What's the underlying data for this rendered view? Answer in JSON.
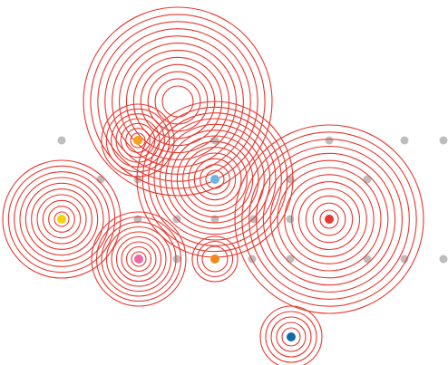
{
  "colors": {
    "background": "#ffffff",
    "ring_stroke": "#e8372e",
    "grid_dot": "#bdbdbd"
  },
  "ring_groups": [
    {
      "name": "ripple-top-large",
      "rings": 12,
      "dot": null
    },
    {
      "name": "ripple-upper-left-small",
      "rings": 7,
      "dot": "#f6a21a"
    },
    {
      "name": "ripple-center",
      "rings": 13,
      "dot": "#6fb3e0"
    },
    {
      "name": "ripple-left",
      "rings": 10,
      "dot": "#f5d10a"
    },
    {
      "name": "ripple-lower-left",
      "rings": 9,
      "dot": "#ea6aa3"
    },
    {
      "name": "ripple-lower-center-small",
      "rings": 3,
      "dot": "#f08a1c"
    },
    {
      "name": "ripple-right-large",
      "rings": 13,
      "dot": "#e8372e"
    },
    {
      "name": "ripple-bottom",
      "rings": 5,
      "dot": "#1369a8"
    }
  ],
  "grid_dot_count": 20
}
